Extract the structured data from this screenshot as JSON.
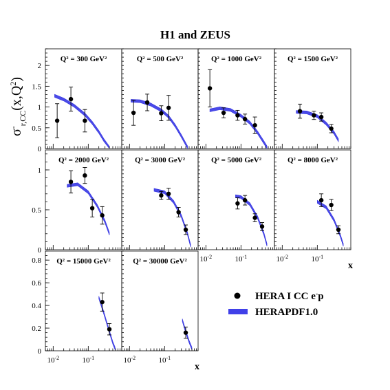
{
  "title": "H1 and ZEUS",
  "ylabel": "σ⁻r,CC(x,Q²)",
  "xlabel": "x",
  "legend": {
    "data_label": "HERA I CC e⁻p",
    "fit_label": "HERAPDF1.0",
    "fit_color": "#4040e8"
  },
  "chart_data": {
    "type": "scatter",
    "xscale": "log",
    "xlim": [
      0.006,
      0.9
    ],
    "panels": [
      {
        "q2_label": "Q² = 300 GeV²",
        "row": 0,
        "col": 0,
        "ylim": [
          0,
          2.4
        ],
        "yticks": [
          0,
          0.5,
          1,
          1.5,
          2
        ],
        "points": [
          {
            "x": 0.013,
            "y": 0.67,
            "err": 0.41
          },
          {
            "x": 0.032,
            "y": 1.19,
            "err": 0.29
          },
          {
            "x": 0.08,
            "y": 0.67,
            "err": 0.27
          }
        ],
        "fit": {
          "x": [
            0.011,
            0.02,
            0.04,
            0.08,
            0.13,
            0.2,
            0.28,
            0.4
          ],
          "y": [
            1.27,
            1.18,
            1.03,
            0.82,
            0.62,
            0.4,
            0.2,
            0.02
          ],
          "w": 0.035
        }
      },
      {
        "q2_label": "Q² = 500 GeV²",
        "row": 0,
        "col": 1,
        "ylim": [
          0,
          2.4
        ],
        "yticks": [],
        "points": [
          {
            "x": 0.013,
            "y": 0.86,
            "err": 0.3
          },
          {
            "x": 0.032,
            "y": 1.11,
            "err": 0.2
          },
          {
            "x": 0.08,
            "y": 0.85,
            "err": 0.18
          },
          {
            "x": 0.13,
            "y": 0.98,
            "err": 0.3
          }
        ],
        "fit": {
          "x": [
            0.011,
            0.02,
            0.04,
            0.08,
            0.13,
            0.2,
            0.3,
            0.45
          ],
          "y": [
            1.15,
            1.14,
            1.06,
            0.92,
            0.77,
            0.55,
            0.3,
            0.03
          ],
          "w": 0.035
        }
      },
      {
        "q2_label": "Q² = 1000 GeV²",
        "row": 0,
        "col": 2,
        "ylim": [
          0,
          2.4
        ],
        "yticks": [],
        "points": [
          {
            "x": 0.013,
            "y": 1.45,
            "err": 0.45
          },
          {
            "x": 0.032,
            "y": 0.86,
            "err": 0.12
          },
          {
            "x": 0.08,
            "y": 0.8,
            "err": 0.12
          },
          {
            "x": 0.13,
            "y": 0.71,
            "err": 0.12
          },
          {
            "x": 0.25,
            "y": 0.56,
            "err": 0.2
          }
        ],
        "fit": {
          "x": [
            0.013,
            0.025,
            0.05,
            0.1,
            0.18,
            0.3,
            0.45,
            0.55
          ],
          "y": [
            0.92,
            0.97,
            0.93,
            0.79,
            0.62,
            0.38,
            0.15,
            0.03
          ],
          "w": 0.035
        }
      },
      {
        "q2_label": "Q² = 1500 GeV²",
        "row": 0,
        "col": 3,
        "ylim": [
          0,
          2.4
        ],
        "yticks": [],
        "points": [
          {
            "x": 0.032,
            "y": 0.9,
            "err": 0.17
          },
          {
            "x": 0.08,
            "y": 0.8,
            "err": 0.1
          },
          {
            "x": 0.13,
            "y": 0.76,
            "err": 0.1
          },
          {
            "x": 0.25,
            "y": 0.48,
            "err": 0.1
          }
        ],
        "fit": {
          "x": [
            0.025,
            0.05,
            0.1,
            0.18,
            0.3,
            0.4
          ],
          "y": [
            0.88,
            0.87,
            0.78,
            0.6,
            0.38,
            0.2
          ],
          "w": 0.035
        }
      },
      {
        "q2_label": "Q² = 2000 GeV²",
        "row": 1,
        "col": 0,
        "ylim": [
          0,
          1.25
        ],
        "yticks": [
          0,
          0.5,
          1
        ],
        "points": [
          {
            "x": 0.032,
            "y": 0.85,
            "err": 0.14
          },
          {
            "x": 0.08,
            "y": 0.93,
            "err": 0.1
          },
          {
            "x": 0.13,
            "y": 0.52,
            "err": 0.11
          },
          {
            "x": 0.25,
            "y": 0.43,
            "err": 0.11
          }
        ],
        "fit": {
          "x": [
            0.025,
            0.05,
            0.1,
            0.18,
            0.3,
            0.4
          ],
          "y": [
            0.8,
            0.82,
            0.72,
            0.55,
            0.35,
            0.2
          ],
          "w": 0.018
        }
      },
      {
        "q2_label": "Q² = 3000 GeV²",
        "row": 1,
        "col": 1,
        "ylim": [
          0,
          1.25
        ],
        "yticks": [],
        "points": [
          {
            "x": 0.08,
            "y": 0.68,
            "err": 0.05
          },
          {
            "x": 0.13,
            "y": 0.7,
            "err": 0.07
          },
          {
            "x": 0.25,
            "y": 0.47,
            "err": 0.06
          },
          {
            "x": 0.4,
            "y": 0.25,
            "err": 0.06
          }
        ],
        "fit": {
          "x": [
            0.05,
            0.1,
            0.18,
            0.3,
            0.45,
            0.55
          ],
          "y": [
            0.75,
            0.72,
            0.6,
            0.42,
            0.2,
            0.05
          ],
          "w": 0.018
        }
      },
      {
        "q2_label": "Q² = 5000 GeV²",
        "row": 1,
        "col": 2,
        "ylim": [
          0,
          1.25
        ],
        "yticks": [],
        "points": [
          {
            "x": 0.08,
            "y": 0.58,
            "err": 0.07
          },
          {
            "x": 0.13,
            "y": 0.62,
            "err": 0.06
          },
          {
            "x": 0.25,
            "y": 0.4,
            "err": 0.05
          },
          {
            "x": 0.4,
            "y": 0.29,
            "err": 0.05
          }
        ],
        "fit": {
          "x": [
            0.07,
            0.1,
            0.18,
            0.3,
            0.45,
            0.55
          ],
          "y": [
            0.67,
            0.66,
            0.57,
            0.4,
            0.2,
            0.06
          ],
          "w": 0.018
        }
      },
      {
        "q2_label": "Q² = 8000 GeV²",
        "row": 1,
        "col": 3,
        "ylim": [
          0,
          1.25
        ],
        "yticks": [],
        "points": [
          {
            "x": 0.13,
            "y": 0.62,
            "err": 0.08
          },
          {
            "x": 0.25,
            "y": 0.56,
            "err": 0.07
          },
          {
            "x": 0.4,
            "y": 0.25,
            "err": 0.05
          }
        ],
        "fit": {
          "x": [
            0.1,
            0.18,
            0.3,
            0.45,
            0.55
          ],
          "y": [
            0.6,
            0.53,
            0.37,
            0.18,
            0.06
          ],
          "w": 0.018
        }
      },
      {
        "q2_label": "Q² = 15000 GeV²",
        "row": 2,
        "col": 0,
        "ylim": [
          0,
          0.88
        ],
        "yticks": [
          0,
          0.2,
          0.4,
          0.6,
          0.8
        ],
        "points": [
          {
            "x": 0.25,
            "y": 0.43,
            "err": 0.08
          },
          {
            "x": 0.4,
            "y": 0.19,
            "err": 0.05
          }
        ],
        "fit": {
          "x": [
            0.2,
            0.28,
            0.38,
            0.5,
            0.58
          ],
          "y": [
            0.47,
            0.33,
            0.19,
            0.07,
            0.02
          ],
          "w": 0.012
        }
      },
      {
        "q2_label": "Q² = 30000 GeV²",
        "row": 2,
        "col": 1,
        "ylim": [
          0,
          0.88
        ],
        "yticks": [],
        "points": [
          {
            "x": 0.4,
            "y": 0.16,
            "err": 0.05
          }
        ],
        "fit": {
          "x": [
            0.32,
            0.4,
            0.5,
            0.6
          ],
          "y": [
            0.27,
            0.17,
            0.08,
            0.02
          ],
          "w": 0.012
        }
      }
    ]
  }
}
